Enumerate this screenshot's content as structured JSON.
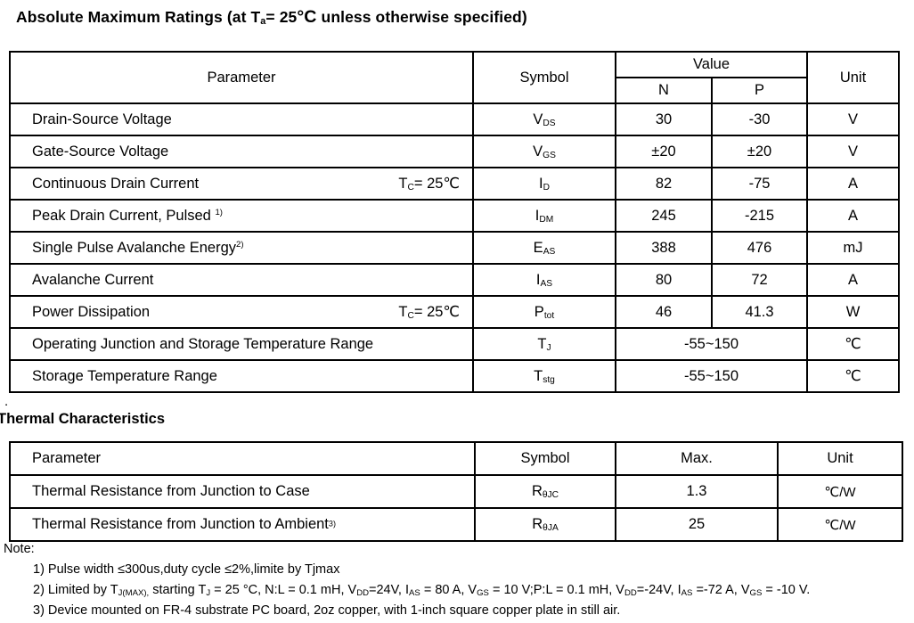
{
  "page": {
    "bg_color": "#ffffff",
    "text_color": "#000000",
    "stray_dot": "."
  },
  "abs_max": {
    "title": [
      {
        "t": "Absolute Maximum Ratings (at T"
      },
      {
        "t": "a",
        "v": "sub"
      },
      {
        "t": "= 25"
      },
      {
        "t": "°C",
        "v": "bigc"
      },
      {
        "t": " unless otherwise specified)"
      }
    ],
    "header": {
      "parameter": "Parameter",
      "symbol": "Symbol",
      "value": "Value",
      "n": "N",
      "p": "P",
      "unit": "Unit"
    },
    "rows": [
      {
        "param": [
          {
            "t": "Drain-Source Voltage"
          }
        ],
        "symbol": [
          {
            "t": "V"
          },
          {
            "t": "DS",
            "v": "sub"
          }
        ],
        "n": "30",
        "p": "-30",
        "unit": "V"
      },
      {
        "param": [
          {
            "t": "Gate-Source Voltage"
          }
        ],
        "symbol": [
          {
            "t": "V"
          },
          {
            "t": "GS",
            "v": "sub"
          }
        ],
        "n": "±20",
        "p": "±20",
        "unit": "V"
      },
      {
        "param": [
          {
            "t": "Continuous Drain Current"
          }
        ],
        "cond": [
          {
            "t": "T"
          },
          {
            "t": "C",
            "v": "sub"
          },
          {
            "t": "= 25℃"
          }
        ],
        "symbol": [
          {
            "t": "I"
          },
          {
            "t": "D",
            "v": "sub"
          }
        ],
        "n": "82",
        "p": "-75",
        "unit": "A"
      },
      {
        "param": [
          {
            "t": "Peak Drain Current, Pulsed "
          },
          {
            "t": "1)",
            "v": "sup"
          }
        ],
        "symbol": [
          {
            "t": "I"
          },
          {
            "t": "DM",
            "v": "sub"
          }
        ],
        "n": "245",
        "p": "-215",
        "unit": "A"
      },
      {
        "param": [
          {
            "t": "Single Pulse Avalanche Energy"
          },
          {
            "t": "2)",
            "v": "sup"
          }
        ],
        "symbol": [
          {
            "t": "E"
          },
          {
            "t": "AS",
            "v": "sub"
          }
        ],
        "n": "388",
        "p": "476",
        "unit": "mJ"
      },
      {
        "param": [
          {
            "t": "Avalanche Current"
          }
        ],
        "symbol": [
          {
            "t": "I"
          },
          {
            "t": "AS",
            "v": "sub"
          }
        ],
        "n": "80",
        "p": "72",
        "unit": "A"
      },
      {
        "param": [
          {
            "t": "Power Dissipation"
          }
        ],
        "cond": [
          {
            "t": "T"
          },
          {
            "t": "C",
            "v": "sub"
          },
          {
            "t": "= 25℃"
          }
        ],
        "symbol": [
          {
            "t": "P"
          },
          {
            "t": "tot",
            "v": "sub"
          }
        ],
        "n": "46",
        "p": "41.3",
        "unit": "W"
      },
      {
        "param": [
          {
            "t": "Operating Junction and Storage Temperature Range"
          }
        ],
        "symbol": [
          {
            "t": "T"
          },
          {
            "t": "J",
            "v": "sub"
          }
        ],
        "np": "-55~150",
        "unit": "℃"
      },
      {
        "param": [
          {
            "t": "Storage Temperature Range"
          }
        ],
        "symbol": [
          {
            "t": "T"
          },
          {
            "t": "stg",
            "v": "sub"
          }
        ],
        "np": "-55~150",
        "unit": "℃"
      }
    ]
  },
  "thermal": {
    "title": "Thermal Characteristics",
    "header": {
      "parameter": "Parameter",
      "symbol": "Symbol",
      "max": "Max.",
      "unit": "Unit"
    },
    "rows": [
      {
        "param": [
          {
            "t": "Thermal Resistance from Junction to Case"
          }
        ],
        "symbol": [
          {
            "t": "R"
          },
          {
            "t": "θJC",
            "v": "sub"
          }
        ],
        "max": "1.3",
        "unit": "℃/W"
      },
      {
        "param": [
          {
            "t": "Thermal Resistance from Junction to Ambient"
          },
          {
            "t": "3)",
            "v": "sup3"
          }
        ],
        "symbol": [
          {
            "t": "R"
          },
          {
            "t": "θJA",
            "v": "sub"
          }
        ],
        "max": "25",
        "unit": "℃/W"
      }
    ]
  },
  "notes": {
    "label": "Note:",
    "items": [
      [
        {
          "t": "1) Pulse width ≤300us,duty cycle ≤2%,limite by Tjmax"
        }
      ],
      [
        {
          "t": "2)  Limited by T"
        },
        {
          "t": "J(MAX),",
          "v": "sub"
        },
        {
          "t": " starting T"
        },
        {
          "t": "J",
          "v": "sub"
        },
        {
          "t": " = 25 °C, N:L = 0.1 mH, V"
        },
        {
          "t": "DD",
          "v": "sub"
        },
        {
          "t": "=24V, I"
        },
        {
          "t": "AS",
          "v": "sub"
        },
        {
          "t": " = 80 A, V"
        },
        {
          "t": "GS",
          "v": "sub"
        },
        {
          "t": " = 10 V;P:L = 0.1 mH, V"
        },
        {
          "t": "DD",
          "v": "sub"
        },
        {
          "t": "=-24V, I"
        },
        {
          "t": "AS",
          "v": "sub"
        },
        {
          "t": " =-72 A, V"
        },
        {
          "t": "GS",
          "v": "sub"
        },
        {
          "t": " = -10 V."
        }
      ],
      [
        {
          "t": "3)  Device mounted on FR-4 substrate PC board, 2oz copper, with 1-inch square copper plate in still air."
        }
      ]
    ]
  }
}
